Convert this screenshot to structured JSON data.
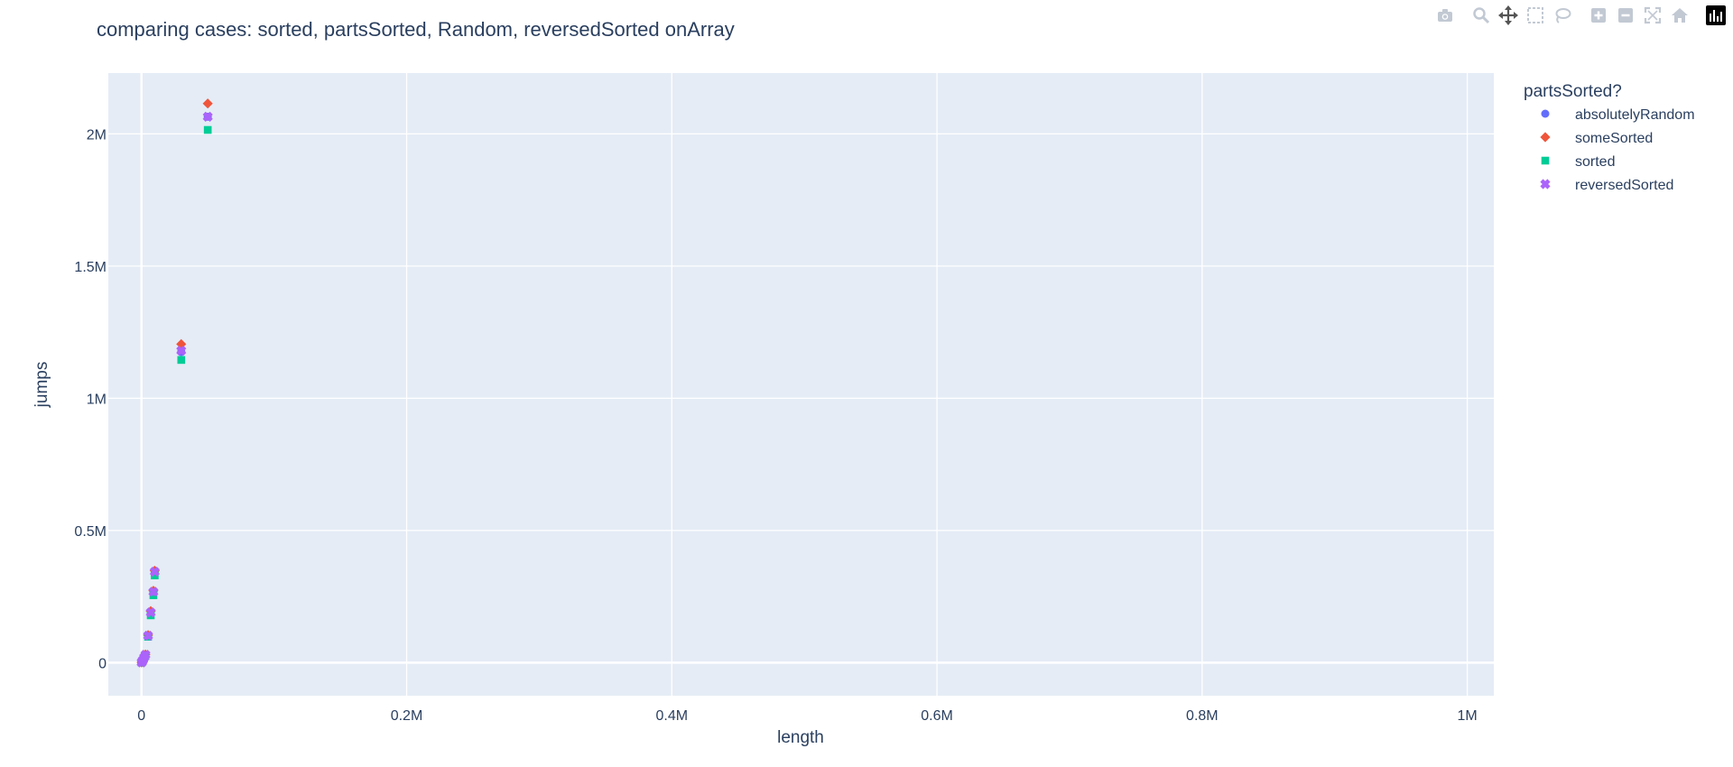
{
  "title": "comparing cases: sorted, partsSorted, Random, reversedSorted onArray",
  "modebar": {
    "icons": [
      "camera-icon",
      "zoom-icon",
      "pan-icon",
      "box-select-icon",
      "lasso-select-icon",
      "zoom-in-icon",
      "zoom-out-icon",
      "autoscale-icon",
      "home-icon",
      "plotly-logo-icon"
    ]
  },
  "colors": {
    "plot_bg": "#E5ECF6",
    "grid": "#FFFFFF",
    "text": "#2A3F5F",
    "absolutelyRandom": "#636EFA",
    "someSorted": "#EF553B",
    "sorted": "#00CC96",
    "reversedSorted": "#AB63FA",
    "modebar_icon": "#C2C9D3"
  },
  "chart_data": {
    "type": "scatter",
    "title": "comparing cases: sorted, partsSorted, Random, reversedSorted onArray",
    "xlabel": "length",
    "ylabel": "jumps",
    "xlim": [
      -25000,
      1020000
    ],
    "ylim": [
      -125000,
      2230000
    ],
    "xticks": [
      {
        "value": 0,
        "label": "0"
      },
      {
        "value": 200000,
        "label": "0.2M"
      },
      {
        "value": 400000,
        "label": "0.4M"
      },
      {
        "value": 600000,
        "label": "0.6M"
      },
      {
        "value": 800000,
        "label": "0.8M"
      },
      {
        "value": 1000000,
        "label": "1M"
      }
    ],
    "yticks": [
      {
        "value": 0,
        "label": "0"
      },
      {
        "value": 500000,
        "label": "0.5M"
      },
      {
        "value": 1000000,
        "label": "1M"
      },
      {
        "value": 1500000,
        "label": "1.5M"
      },
      {
        "value": 2000000,
        "label": "2M"
      }
    ],
    "grid": true,
    "legend": {
      "title": "partsSorted?",
      "placement": "top-right outside"
    },
    "series": [
      {
        "name": "absolutelyRandom",
        "marker": "circle",
        "points": [
          {
            "x": 100,
            "y": 700
          },
          {
            "x": 500,
            "y": 4000
          },
          {
            "x": 1000,
            "y": 9000
          },
          {
            "x": 2000,
            "y": 19000
          },
          {
            "x": 3000,
            "y": 29000
          },
          {
            "x": 5000,
            "y": 101000
          },
          {
            "x": 7000,
            "y": 186000
          },
          {
            "x": 9000,
            "y": 265000
          },
          {
            "x": 10000,
            "y": 342000
          },
          {
            "x": 30000,
            "y": 1175000
          },
          {
            "x": 50000,
            "y": 2065000
          }
        ]
      },
      {
        "name": "someSorted",
        "marker": "diamond",
        "points": [
          {
            "x": 100,
            "y": 800
          },
          {
            "x": 500,
            "y": 4500
          },
          {
            "x": 1000,
            "y": 10000
          },
          {
            "x": 2000,
            "y": 21000
          },
          {
            "x": 3000,
            "y": 31000
          },
          {
            "x": 5000,
            "y": 104000
          },
          {
            "x": 7000,
            "y": 195000
          },
          {
            "x": 9000,
            "y": 272000
          },
          {
            "x": 10000,
            "y": 348000
          },
          {
            "x": 30000,
            "y": 1205000
          },
          {
            "x": 50000,
            "y": 2115000
          }
        ]
      },
      {
        "name": "sorted",
        "marker": "square",
        "points": [
          {
            "x": 100,
            "y": 600
          },
          {
            "x": 500,
            "y": 3500
          },
          {
            "x": 1000,
            "y": 8000
          },
          {
            "x": 2000,
            "y": 17000
          },
          {
            "x": 3000,
            "y": 26000
          },
          {
            "x": 5000,
            "y": 98000
          },
          {
            "x": 7000,
            "y": 179000
          },
          {
            "x": 9000,
            "y": 255000
          },
          {
            "x": 10000,
            "y": 330000
          },
          {
            "x": 30000,
            "y": 1145000
          },
          {
            "x": 50000,
            "y": 2015000
          }
        ]
      },
      {
        "name": "reversedSorted",
        "marker": "x",
        "points": [
          {
            "x": 100,
            "y": 700
          },
          {
            "x": 500,
            "y": 4000
          },
          {
            "x": 1000,
            "y": 9500
          },
          {
            "x": 2000,
            "y": 20000
          },
          {
            "x": 3000,
            "y": 30000
          },
          {
            "x": 5000,
            "y": 102000
          },
          {
            "x": 7000,
            "y": 190000
          },
          {
            "x": 9000,
            "y": 268000
          },
          {
            "x": 10000,
            "y": 344000
          },
          {
            "x": 30000,
            "y": 1180000
          },
          {
            "x": 50000,
            "y": 2065000
          }
        ]
      }
    ]
  }
}
